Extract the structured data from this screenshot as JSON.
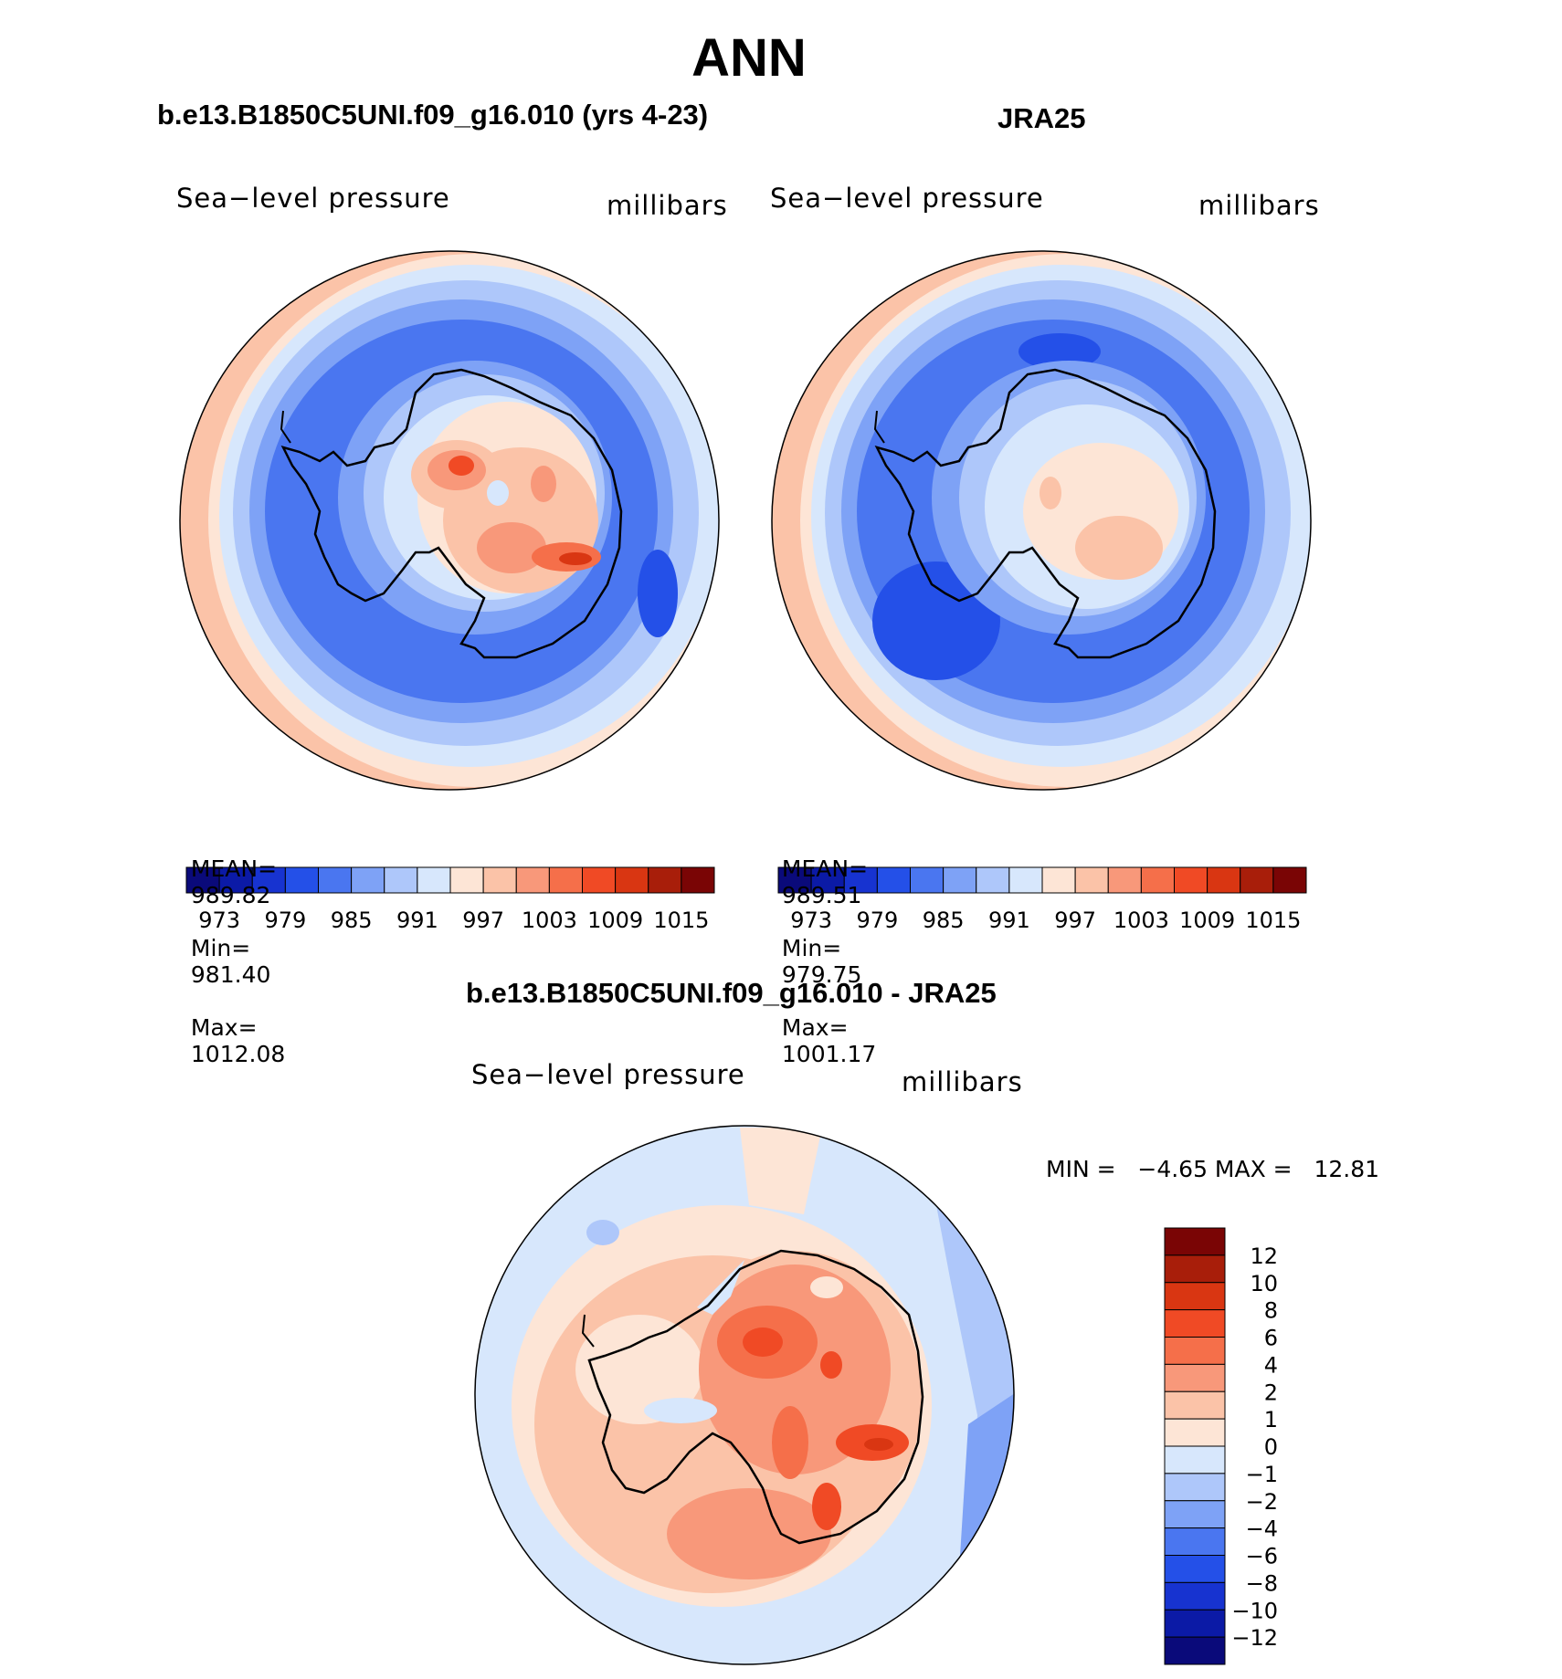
{
  "title": "ANN",
  "panels": [
    {
      "id": "model",
      "title": "b.e13.B1850C5UNI.f09_g16.010 (yrs 4-23)",
      "variable": "Sea−level pressure",
      "units": "millibars",
      "stats": {
        "mean_label": "MEAN=",
        "mean": "989.82",
        "min_label": "Min=",
        "min": "981.40",
        "max_label": "Max=",
        "max": "1012.08"
      }
    },
    {
      "id": "obs",
      "title": "JRA25",
      "variable": "Sea−level pressure",
      "units": "millibars",
      "stats": {
        "mean_label": "MEAN=",
        "mean": "989.51",
        "min_label": "Min=",
        "min": "979.75",
        "max_label": "Max=",
        "max": "1001.17"
      }
    }
  ],
  "abs_colorbar": {
    "colors": [
      "#0a0a7a",
      "#0b1aa6",
      "#1733d0",
      "#2450e8",
      "#4a76f0",
      "#7ea2f6",
      "#aec7fa",
      "#d7e7fc",
      "#fde5d6",
      "#fbc3a8",
      "#f8987a",
      "#f56f4a",
      "#f04a25",
      "#d93612",
      "#a81e0a",
      "#7a0505"
    ],
    "tick_labels": [
      "973",
      "979",
      "985",
      "991",
      "997",
      "1003",
      "1009",
      "1015"
    ]
  },
  "diff_panel": {
    "title": "b.e13.B1850C5UNI.f09_g16.010 - JRA25",
    "variable": "Sea−level pressure",
    "units": "millibars",
    "min_max_text": "MIN =   −4.65 MAX =   12.81"
  },
  "diff_colorbar": {
    "colors": [
      "#7a0505",
      "#a81e0a",
      "#d93612",
      "#f04a25",
      "#f56f4a",
      "#f8987a",
      "#fbc3a8",
      "#fde5d6",
      "#d7e7fc",
      "#aec7fa",
      "#7ea2f6",
      "#4a76f0",
      "#2450e8",
      "#1733d0",
      "#0b1aa6",
      "#0a0a7a"
    ],
    "tick_labels": [
      "12",
      "10",
      "8",
      "6",
      "4",
      "2",
      "1",
      "0",
      "−1",
      "−2",
      "−4",
      "−6",
      "−8",
      "−10",
      "−12"
    ]
  }
}
